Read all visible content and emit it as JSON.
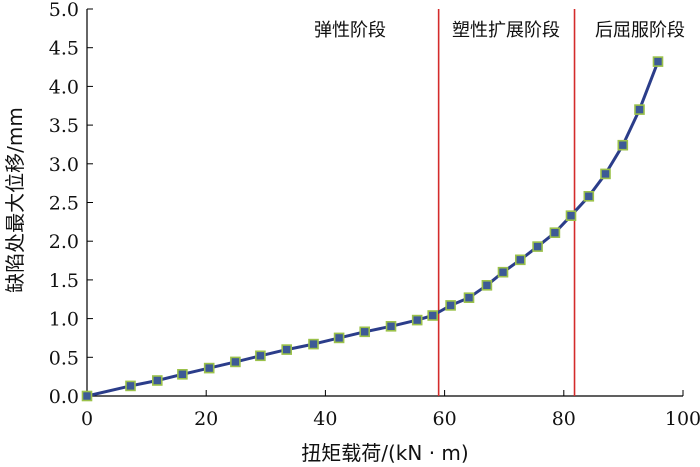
{
  "chart_data": {
    "type": "line",
    "xlabel": "扭矩载荷/(kN · m)",
    "ylabel": "缺陷处最大位移/mm",
    "xlim": [
      0,
      100
    ],
    "ylim": [
      0,
      5.0
    ],
    "x_ticks": [
      "0",
      "20",
      "40",
      "60",
      "80",
      "100"
    ],
    "y_ticks": [
      "0.0",
      "0.5",
      "1.0",
      "1.5",
      "2.0",
      "2.5",
      "3.0",
      "3.5",
      "4.0",
      "4.5",
      "5.0"
    ],
    "grid": false,
    "series": [
      {
        "x": [
          0,
          7.3,
          11.8,
          16,
          20.5,
          24.9,
          29.1,
          33.5,
          38,
          42.3,
          46.6,
          51,
          55.4,
          58,
          61,
          64.1,
          67.1,
          69.8,
          72.7,
          75.6,
          78.5,
          81.2,
          84.2,
          87,
          89.9,
          92.7,
          95.8
        ],
        "y": [
          0.0,
          0.13,
          0.2,
          0.28,
          0.36,
          0.44,
          0.52,
          0.6,
          0.67,
          0.75,
          0.83,
          0.9,
          0.98,
          1.04,
          1.17,
          1.27,
          1.43,
          1.6,
          1.76,
          1.93,
          2.11,
          2.33,
          2.58,
          2.87,
          3.24,
          3.7,
          4.32
        ]
      }
    ],
    "vlines": [
      59,
      81.8
    ],
    "stage_labels": [
      "弹性阶段",
      "塑性扩展阶段",
      "后屈服阶段"
    ],
    "colors": {
      "line": "#2b3d8a",
      "marker_fill": "#3d5a96",
      "marker_edge": "#9bc14a",
      "vline": "#d42b2b"
    }
  }
}
